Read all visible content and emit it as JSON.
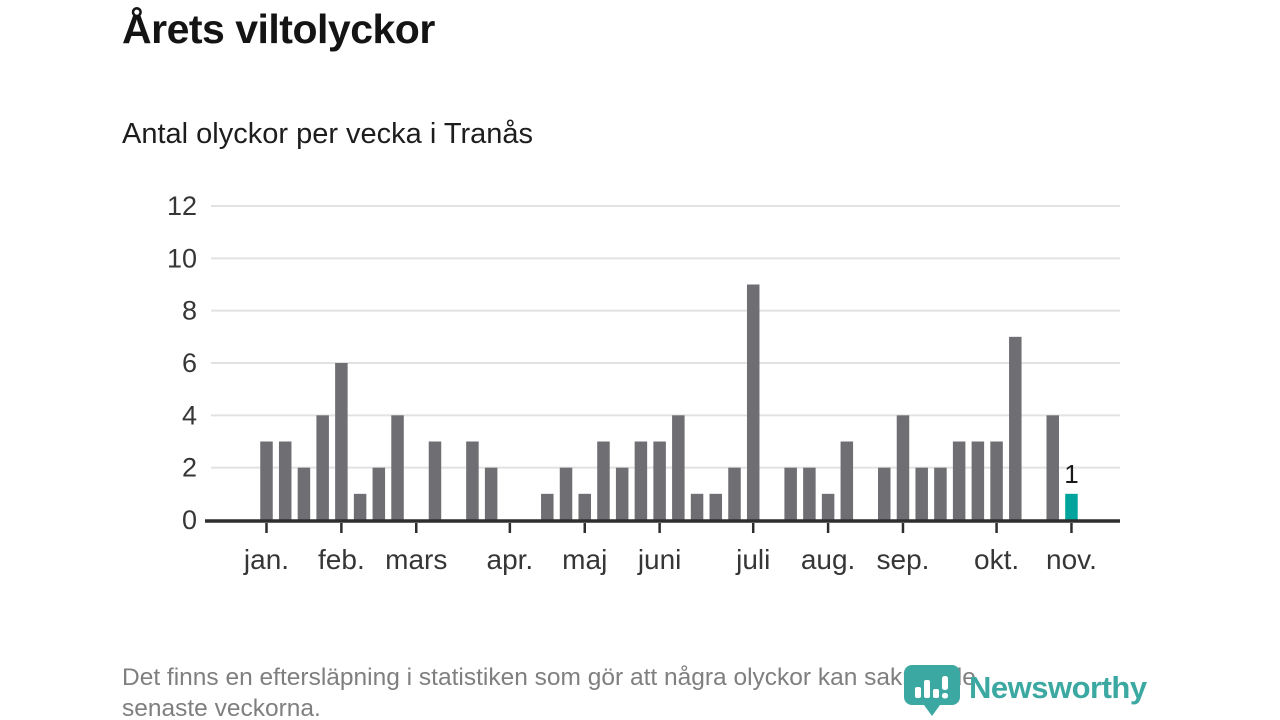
{
  "title": "Årets viltolyckor",
  "subtitle": "Antal olyckor per vecka i Tranås",
  "footnote": {
    "line1": "Det finns en eftersläpning i statistiken som gör att några olyckor kan saknas de",
    "line2": "senaste veckorna."
  },
  "branding": {
    "name": "Newsworthy",
    "icon": "newsworthy-pin-barchart-icon",
    "color": "#3BA8A1"
  },
  "chart_data": {
    "type": "bar",
    "title": "Årets viltolyckor",
    "subtitle": "Antal olyckor per vecka i Tranås",
    "x_unit": "vecka",
    "values": [
      3,
      3,
      2,
      4,
      6,
      1,
      2,
      4,
      0,
      3,
      0,
      3,
      2,
      0,
      0,
      1,
      2,
      1,
      3,
      2,
      3,
      3,
      4,
      1,
      1,
      2,
      9,
      0,
      2,
      2,
      1,
      3,
      0,
      2,
      4,
      2,
      2,
      3,
      3,
      3,
      7,
      0,
      4,
      1
    ],
    "month_labels": [
      "jan.",
      "feb.",
      "mars",
      "apr.",
      "maj",
      "juni",
      "juli",
      "aug.",
      "sep.",
      "okt.",
      "nov."
    ],
    "month_first_week_index": [
      0,
      4,
      8,
      13,
      17,
      21,
      26,
      30,
      34,
      39,
      43
    ],
    "y_ticks": [
      0,
      2,
      4,
      6,
      8,
      10,
      12
    ],
    "ylim": [
      0,
      12
    ],
    "grid": true,
    "legend": "none",
    "highlight_last_bar": true,
    "last_bar_label": "1",
    "colors": {
      "bar": "#6E6E73",
      "highlight": "#00A49C",
      "grid": "#E2E2E2",
      "axis": "#2E2E2E",
      "tick_label": "#363636",
      "value_label": "#1A1A1A"
    }
  }
}
